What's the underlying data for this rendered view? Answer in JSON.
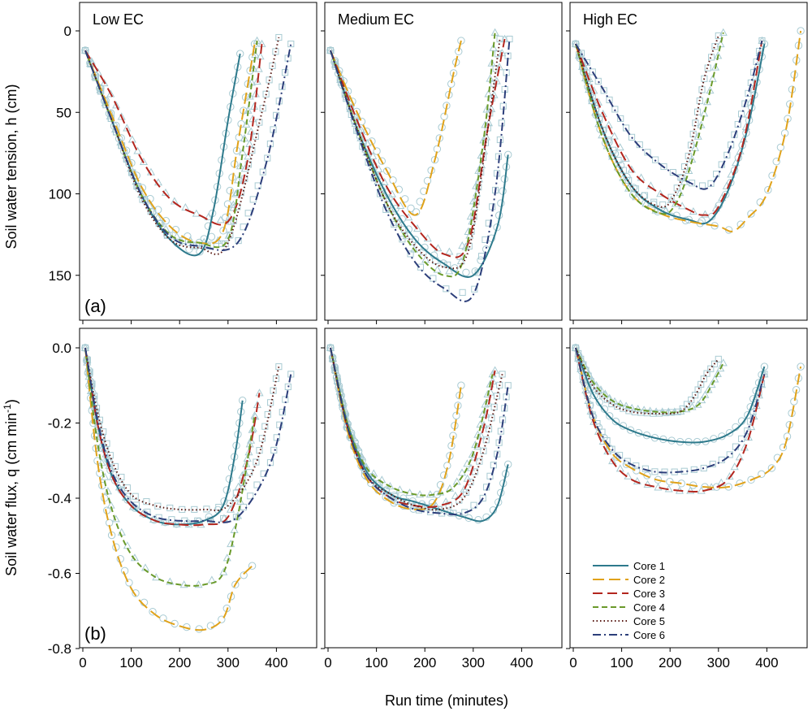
{
  "figure": {
    "xlabel": "Run time (minutes)",
    "marker_color": "#a9cbd3"
  },
  "series_styles": [
    {
      "name": "Core 1",
      "color": "#2e7a8c",
      "dash": ""
    },
    {
      "name": "Core 2",
      "color": "#e0a21a",
      "dash": "14 6"
    },
    {
      "name": "Core 3",
      "color": "#b3261e",
      "dash": "12 6"
    },
    {
      "name": "Core 4",
      "color": "#6a9a2a",
      "dash": "7 4"
    },
    {
      "name": "Core 5",
      "color": "#5a1a14",
      "dash": "1.5 3"
    },
    {
      "name": "Core 6",
      "color": "#2c3e7a",
      "dash": "10 4 2 4"
    }
  ],
  "chart_data": [
    {
      "type": "line",
      "panel": "top-left",
      "title": "Low EC",
      "letter": "(a)",
      "ylabel": "Soil water tension, h (cm)",
      "xlim": [
        0,
        460
      ],
      "ylim": [
        0,
        170
      ],
      "y_inverted": true,
      "xticks": [
        0,
        100,
        200,
        300,
        400
      ],
      "yticks": [
        0,
        50,
        100,
        150
      ],
      "series": [
        {
          "name": "Core 1",
          "x": [
            5,
            60,
            120,
            180,
            240,
            270,
            300,
            325
          ],
          "y": [
            12,
            55,
            100,
            128,
            137,
            110,
            55,
            14
          ]
        },
        {
          "name": "Core 2",
          "x": [
            5,
            60,
            120,
            180,
            240,
            290,
            320,
            355
          ],
          "y": [
            12,
            52,
            95,
            120,
            130,
            123,
            70,
            8
          ]
        },
        {
          "name": "Core 3",
          "x": [
            5,
            60,
            120,
            180,
            240,
            300,
            340,
            370
          ],
          "y": [
            12,
            40,
            78,
            103,
            113,
            117,
            80,
            8
          ]
        },
        {
          "name": "Core 4",
          "x": [
            5,
            60,
            120,
            180,
            240,
            300,
            330,
            360
          ],
          "y": [
            12,
            55,
            100,
            125,
            130,
            128,
            75,
            6
          ]
        },
        {
          "name": "Core 5",
          "x": [
            5,
            60,
            120,
            180,
            240,
            300,
            370,
            405
          ],
          "y": [
            12,
            55,
            102,
            128,
            133,
            130,
            50,
            4
          ]
        },
        {
          "name": "Core 6",
          "x": [
            5,
            60,
            120,
            180,
            240,
            320,
            380,
            430
          ],
          "y": [
            12,
            55,
            100,
            126,
            132,
            130,
            80,
            8
          ]
        }
      ]
    },
    {
      "type": "line",
      "panel": "top-middle",
      "title": "Medium EC",
      "xlim": [
        0,
        460
      ],
      "ylim": [
        0,
        170
      ],
      "y_inverted": true,
      "xticks": [
        0,
        100,
        200,
        300,
        400
      ],
      "yticks": [
        0,
        50,
        100,
        150
      ],
      "series": [
        {
          "name": "Core 1",
          "x": [
            5,
            60,
            120,
            180,
            240,
            300,
            350,
            372
          ],
          "y": [
            12,
            60,
            100,
            128,
            143,
            150,
            120,
            76
          ]
        },
        {
          "name": "Core 2",
          "x": [
            5,
            60,
            120,
            180,
            220,
            260,
            275
          ],
          "y": [
            12,
            50,
            85,
            113,
            80,
            25,
            6
          ]
        },
        {
          "name": "Core 3",
          "x": [
            5,
            60,
            120,
            180,
            240,
            290,
            330,
            365
          ],
          "y": [
            12,
            55,
            95,
            120,
            137,
            130,
            60,
            5
          ]
        },
        {
          "name": "Core 4",
          "x": [
            5,
            60,
            120,
            180,
            240,
            280,
            320,
            345
          ],
          "y": [
            12,
            60,
            105,
            135,
            150,
            140,
            70,
            1
          ]
        },
        {
          "name": "Core 5",
          "x": [
            5,
            60,
            120,
            180,
            240,
            290,
            330,
            355
          ],
          "y": [
            12,
            60,
            105,
            132,
            145,
            135,
            60,
            5
          ]
        },
        {
          "name": "Core 6",
          "x": [
            5,
            60,
            120,
            180,
            240,
            300,
            345,
            375
          ],
          "y": [
            12,
            62,
            110,
            142,
            158,
            162,
            100,
            5
          ]
        }
      ]
    },
    {
      "type": "line",
      "panel": "top-right",
      "title": "High EC",
      "xlim": [
        0,
        460
      ],
      "ylim": [
        0,
        170
      ],
      "y_inverted": true,
      "xticks": [
        0,
        100,
        200,
        300,
        400
      ],
      "yticks": [
        0,
        50,
        100,
        150
      ],
      "series": [
        {
          "name": "Core 1",
          "x": [
            5,
            60,
            120,
            180,
            240,
            280,
            320,
            360,
            395
          ],
          "y": [
            8,
            60,
            95,
            110,
            116,
            117,
            98,
            60,
            8
          ]
        },
        {
          "name": "Core 2",
          "x": [
            5,
            60,
            120,
            180,
            240,
            300,
            330,
            360,
            400,
            440,
            470
          ],
          "y": [
            8,
            65,
            100,
            112,
            117,
            120,
            123,
            115,
            100,
            60,
            0
          ]
        },
        {
          "name": "Core 3",
          "x": [
            5,
            60,
            120,
            180,
            240,
            270,
            300,
            350,
            390
          ],
          "y": [
            8,
            50,
            85,
            100,
            110,
            113,
            108,
            70,
            6
          ]
        },
        {
          "name": "Core 4",
          "x": [
            5,
            60,
            120,
            180,
            210,
            240,
            280,
            310
          ],
          "y": [
            8,
            65,
            100,
            112,
            107,
            85,
            40,
            1
          ]
        },
        {
          "name": "Core 5",
          "x": [
            5,
            60,
            120,
            180,
            210,
            240,
            270,
            300
          ],
          "y": [
            8,
            60,
            95,
            108,
            100,
            75,
            30,
            3
          ]
        },
        {
          "name": "Core 6",
          "x": [
            5,
            60,
            120,
            180,
            240,
            280,
            320,
            360,
            390
          ],
          "y": [
            8,
            35,
            65,
            82,
            93,
            96,
            75,
            40,
            6
          ]
        }
      ]
    },
    {
      "type": "line",
      "panel": "bottom-left",
      "letter": "(b)",
      "ylabel": "Soil water flux, q (cm min",
      "ylabel_sup": "-1",
      "ylabel_close": ")",
      "xlim": [
        0,
        460
      ],
      "ylim": [
        -0.8,
        0.02
      ],
      "xticks": [
        0,
        100,
        200,
        300,
        400
      ],
      "yticks": [
        0.0,
        -0.2,
        -0.4,
        -0.6,
        -0.8
      ],
      "ytick_labels": [
        "0.0",
        "-0.2",
        "-0.4",
        "-0.6",
        "-0.8"
      ],
      "xtick_labels": [
        "0",
        "100",
        "200",
        "300",
        "400"
      ],
      "series": [
        {
          "name": "Core 1",
          "x": [
            5,
            30,
            60,
            100,
            150,
            200,
            250,
            290,
            315,
            330
          ],
          "y": [
            0.0,
            -0.2,
            -0.34,
            -0.42,
            -0.46,
            -0.47,
            -0.46,
            -0.42,
            -0.28,
            -0.14
          ]
        },
        {
          "name": "Core 2",
          "x": [
            5,
            30,
            60,
            100,
            150,
            200,
            250,
            290,
            315,
            350
          ],
          "y": [
            0.0,
            -0.3,
            -0.5,
            -0.64,
            -0.71,
            -0.74,
            -0.75,
            -0.72,
            -0.63,
            -0.58
          ]
        },
        {
          "name": "Core 3",
          "x": [
            5,
            30,
            60,
            100,
            150,
            200,
            250,
            300,
            340,
            365
          ],
          "y": [
            0.0,
            -0.2,
            -0.34,
            -0.42,
            -0.46,
            -0.47,
            -0.47,
            -0.45,
            -0.3,
            -0.12
          ]
        },
        {
          "name": "Core 4",
          "x": [
            5,
            30,
            60,
            100,
            150,
            200,
            250,
            290,
            320,
            355
          ],
          "y": [
            0.0,
            -0.25,
            -0.43,
            -0.55,
            -0.61,
            -0.63,
            -0.63,
            -0.6,
            -0.45,
            -0.18
          ]
        },
        {
          "name": "Core 5",
          "x": [
            5,
            30,
            60,
            100,
            150,
            200,
            250,
            300,
            360,
            405
          ],
          "y": [
            0.0,
            -0.17,
            -0.3,
            -0.39,
            -0.42,
            -0.43,
            -0.43,
            -0.42,
            -0.3,
            -0.05
          ]
        },
        {
          "name": "Core 6",
          "x": [
            5,
            30,
            60,
            100,
            150,
            200,
            250,
            320,
            390,
            430
          ],
          "y": [
            0.0,
            -0.19,
            -0.33,
            -0.41,
            -0.45,
            -0.46,
            -0.46,
            -0.45,
            -0.3,
            -0.07
          ]
        }
      ]
    },
    {
      "type": "line",
      "panel": "bottom-middle",
      "xlim": [
        0,
        460
      ],
      "ylim": [
        -0.8,
        0.02
      ],
      "xticks": [
        0,
        100,
        200,
        300,
        400
      ],
      "yticks": [
        0.0,
        -0.2,
        -0.4,
        -0.6,
        -0.8
      ],
      "xtick_labels": [
        "0",
        "100",
        "200",
        "300",
        "400"
      ],
      "series": [
        {
          "name": "Core 1",
          "x": [
            5,
            40,
            80,
            130,
            180,
            230,
            280,
            320,
            350,
            372
          ],
          "y": [
            0.0,
            -0.2,
            -0.33,
            -0.39,
            -0.41,
            -0.43,
            -0.45,
            -0.46,
            -0.42,
            -0.31
          ]
        },
        {
          "name": "Core 2",
          "x": [
            5,
            40,
            80,
            130,
            180,
            220,
            250,
            275
          ],
          "y": [
            0.0,
            -0.22,
            -0.35,
            -0.41,
            -0.43,
            -0.41,
            -0.3,
            -0.1
          ]
        },
        {
          "name": "Core 3",
          "x": [
            5,
            40,
            80,
            130,
            180,
            230,
            280,
            320,
            345
          ],
          "y": [
            0.0,
            -0.21,
            -0.34,
            -0.4,
            -0.42,
            -0.42,
            -0.38,
            -0.22,
            -0.06
          ]
        },
        {
          "name": "Core 4",
          "x": [
            5,
            40,
            80,
            130,
            180,
            220,
            260,
            300,
            340
          ],
          "y": [
            0.0,
            -0.2,
            -0.32,
            -0.37,
            -0.39,
            -0.39,
            -0.37,
            -0.28,
            -0.07
          ]
        },
        {
          "name": "Core 5",
          "x": [
            5,
            40,
            80,
            130,
            180,
            230,
            280,
            320,
            360
          ],
          "y": [
            0.0,
            -0.21,
            -0.34,
            -0.39,
            -0.42,
            -0.43,
            -0.4,
            -0.28,
            -0.07
          ]
        },
        {
          "name": "Core 6",
          "x": [
            5,
            40,
            80,
            130,
            180,
            230,
            280,
            320,
            350,
            372
          ],
          "y": [
            0.0,
            -0.21,
            -0.34,
            -0.4,
            -0.43,
            -0.44,
            -0.44,
            -0.4,
            -0.28,
            -0.1
          ]
        }
      ]
    },
    {
      "type": "line",
      "panel": "bottom-right",
      "xlim": [
        0,
        460
      ],
      "ylim": [
        -0.8,
        0.02
      ],
      "xticks": [
        0,
        100,
        200,
        300,
        400
      ],
      "yticks": [
        0.0,
        -0.2,
        -0.4,
        -0.6,
        -0.8
      ],
      "xtick_labels": [
        "0",
        "100",
        "200",
        "300",
        "400"
      ],
      "legend_position": "lower-right",
      "series": [
        {
          "name": "Core 1",
          "x": [
            5,
            40,
            80,
            120,
            170,
            220,
            270,
            320,
            360,
            395
          ],
          "y": [
            0.0,
            -0.12,
            -0.19,
            -0.22,
            -0.24,
            -0.25,
            -0.25,
            -0.23,
            -0.18,
            -0.05
          ]
        },
        {
          "name": "Core 2",
          "x": [
            5,
            40,
            80,
            120,
            170,
            220,
            270,
            320,
            370,
            410,
            440,
            470
          ],
          "y": [
            0.0,
            -0.18,
            -0.28,
            -0.32,
            -0.35,
            -0.36,
            -0.37,
            -0.37,
            -0.35,
            -0.32,
            -0.25,
            -0.05
          ]
        },
        {
          "name": "Core 3",
          "x": [
            5,
            40,
            80,
            120,
            170,
            220,
            270,
            320,
            360,
            395
          ],
          "y": [
            0.0,
            -0.19,
            -0.3,
            -0.35,
            -0.37,
            -0.38,
            -0.38,
            -0.35,
            -0.25,
            -0.07
          ]
        },
        {
          "name": "Core 4",
          "x": [
            5,
            40,
            80,
            120,
            170,
            220,
            260,
            290,
            310
          ],
          "y": [
            0.0,
            -0.09,
            -0.14,
            -0.16,
            -0.17,
            -0.17,
            -0.15,
            -0.09,
            -0.04
          ]
        },
        {
          "name": "Core 5",
          "x": [
            5,
            40,
            80,
            120,
            170,
            220,
            250,
            275,
            300
          ],
          "y": [
            0.0,
            -0.1,
            -0.15,
            -0.17,
            -0.175,
            -0.17,
            -0.13,
            -0.07,
            -0.03
          ]
        },
        {
          "name": "Core 6",
          "x": [
            5,
            40,
            80,
            120,
            170,
            220,
            270,
            320,
            360,
            395
          ],
          "y": [
            0.0,
            -0.18,
            -0.27,
            -0.31,
            -0.33,
            -0.33,
            -0.32,
            -0.29,
            -0.22,
            -0.07
          ]
        }
      ]
    }
  ]
}
